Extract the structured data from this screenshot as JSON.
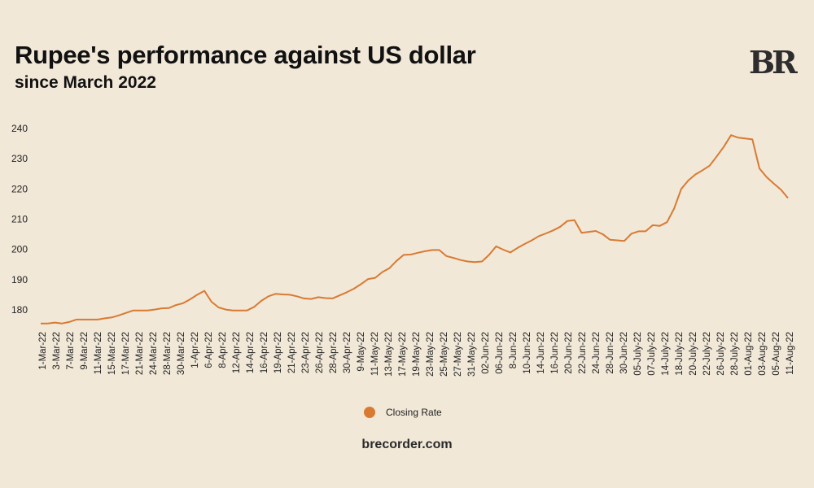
{
  "header": {
    "title": "Rupee's performance against US dollar",
    "subtitle": "since March 2022",
    "logo": "BR"
  },
  "footer": {
    "source": "brecorder.com"
  },
  "colors": {
    "line": "#d97a33",
    "background": "#f1e8d8",
    "text": "#222222"
  },
  "chart_data": {
    "type": "line",
    "title": "Rupee's performance against US dollar",
    "subtitle": "since March 2022",
    "xlabel": "",
    "ylabel": "",
    "ylim": [
      175,
      242
    ],
    "yticks": [
      180,
      190,
      200,
      210,
      220,
      230,
      240
    ],
    "grid": false,
    "legend_position": "bottom",
    "x_tick_labels": [
      "1-Mar-22",
      "3-Mar-22",
      "7-Mar-22",
      "9-Mar-22",
      "11-Mar-22",
      "15-Mar-22",
      "17-Mar-22",
      "21-Mar-22",
      "24-Mar-22",
      "28-Mar-22",
      "30-Mar-22",
      "1-Apr-22",
      "6-Apr-22",
      "8-Apr-22",
      "12-Apr-22",
      "14-Apr-22",
      "16-Apr-22",
      "19-Apr-22",
      "21-Apr-22",
      "23-Apr-22",
      "26-Apr-22",
      "28-Apr-22",
      "30-Apr-22",
      "9-May-22",
      "11-May-22",
      "13-May-22",
      "17-May-22",
      "19-May-22",
      "23-May-22",
      "25-May-22",
      "27-May-22",
      "31-May-22",
      "02-Jun-22",
      "06-Jun-22",
      "8-Jun-22",
      "10-Jun-22",
      "14-Jun-22",
      "16-Jun-22",
      "20-Jun-22",
      "22-Jun-22",
      "24-Jun-22",
      "28-Jun-22",
      "30-Jun-22",
      "05-July-22",
      "07-July-22",
      "14-July-22",
      "18-July-22",
      "20-July-22",
      "22-July-22",
      "26-July-22",
      "28-July-22",
      "01-Aug-22",
      "03-Aug-22",
      "05-Aug-22",
      "11-Aug-22"
    ],
    "series": [
      {
        "name": "Closing Rate",
        "values": [
          175.5,
          175.5,
          175.8,
          175.5,
          176.0,
          176.8,
          176.8,
          176.8,
          176.8,
          177.2,
          177.5,
          178.2,
          179.0,
          179.8,
          179.8,
          179.8,
          180.1,
          180.5,
          180.6,
          181.6,
          182.2,
          183.5,
          185.0,
          186.3,
          182.7,
          180.8,
          180.1,
          179.8,
          179.8,
          179.8,
          181.0,
          183.0,
          184.5,
          185.3,
          185.1,
          185.0,
          184.5,
          183.8,
          183.6,
          184.2,
          183.9,
          183.8,
          184.8,
          185.8,
          187.0,
          188.5,
          190.2,
          190.6,
          192.5,
          193.8,
          196.2,
          198.2,
          198.3,
          198.9,
          199.4,
          199.8,
          199.8,
          197.8,
          197.2,
          196.5,
          196.0,
          195.8,
          196.0,
          198.2,
          201.0,
          199.9,
          199.0,
          200.5,
          201.8,
          203.0,
          204.4,
          205.3,
          206.3,
          207.5,
          209.4,
          209.7,
          205.5,
          205.8,
          206.1,
          205.0,
          203.2,
          203.0,
          202.8,
          205.2,
          206.0,
          206.0,
          208.0,
          207.8,
          209.0,
          213.5,
          220.0,
          222.8,
          224.8,
          226.2,
          227.7,
          230.8,
          234.0,
          237.8,
          237.0,
          236.7,
          236.4,
          226.8,
          223.9,
          221.8,
          219.8,
          217.0
        ]
      }
    ]
  }
}
